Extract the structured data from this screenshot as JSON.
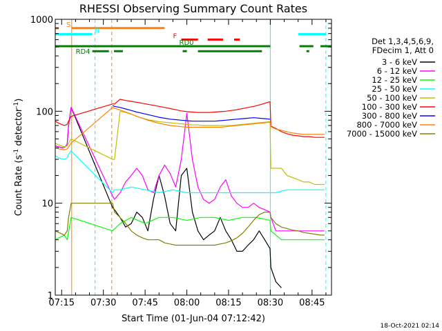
{
  "chart_data": {
    "type": "line",
    "title": "RHESSI Observing Summary Count Rates",
    "xlabel": "Start Time (01-Jun-04 07:12:42)",
    "ylabel_main": "Count Rate (s",
    "ylabel_sup1": "-1",
    "ylabel_mid": " detector",
    "ylabel_sup2": "-1",
    "ylabel_end": ")",
    "yscale": "log",
    "ylim": [
      1,
      1000
    ],
    "xlim_minutes": [
      432.7,
      532.0
    ],
    "x_ticks": [
      {
        "label": "07:15",
        "minute": 435
      },
      {
        "label": "07:30",
        "minute": 450
      },
      {
        "label": "07:45",
        "minute": 465
      },
      {
        "label": "08:00",
        "minute": 480
      },
      {
        "label": "08:15",
        "minute": 495
      },
      {
        "label": "08:30",
        "minute": 510
      },
      {
        "label": "08:45",
        "minute": 525
      }
    ],
    "y_ticks": [
      {
        "label": "1",
        "value": 1
      },
      {
        "label": "10",
        "value": 10
      },
      {
        "label": "100",
        "value": 100
      },
      {
        "label": "1000",
        "value": 1000
      }
    ],
    "legend_header": [
      "Det 1,3,4,5,6,9,",
      "FDecim 1, Att 0"
    ],
    "series": [
      {
        "name": "3 - 6 keV",
        "color": "#000000",
        "x": [
          432.7,
          434,
          435.3,
          436.3,
          437,
          437.5,
          438.4,
          453.3,
          454,
          456,
          458,
          460,
          462,
          464,
          466,
          468,
          470,
          472,
          474,
          476,
          478,
          480,
          482,
          484,
          486,
          488,
          490,
          492,
          494,
          496,
          498,
          500,
          502,
          504,
          506,
          508,
          509.9,
          510.2,
          512,
          514,
          516,
          518,
          520,
          522,
          524,
          526,
          528,
          529.5
        ],
        "y": [
          42,
          41,
          40,
          41,
          44,
          70,
          110,
          9,
          8.5,
          7,
          5.5,
          6,
          8,
          7,
          5,
          11,
          20,
          12,
          6,
          5,
          20,
          24,
          8,
          5,
          4,
          4.5,
          5,
          7,
          5,
          4,
          3,
          3,
          3.5,
          4,
          5,
          4,
          3.2,
          2,
          1.4,
          1.2,
          null,
          null,
          null,
          null,
          null,
          null,
          null,
          null
        ]
      },
      {
        "name": "6 - 12 keV",
        "color": "#ff00ff",
        "x": [
          432.7,
          434,
          435.3,
          436.3,
          437,
          437.5,
          438.4,
          453.3,
          454,
          456,
          458,
          460,
          462,
          464,
          466,
          468,
          470,
          472,
          474,
          476,
          478,
          480,
          482,
          484,
          486,
          488,
          490,
          492,
          494,
          496,
          498,
          500,
          502,
          504,
          506,
          508,
          509.9,
          510.2,
          512,
          514,
          516,
          518,
          520,
          522,
          524,
          526,
          528,
          529.5
        ],
        "y": [
          42,
          41,
          40,
          41,
          44,
          70,
          110,
          12,
          11,
          13,
          17,
          20,
          24,
          20,
          14,
          13,
          20,
          26,
          21,
          15,
          30,
          95,
          30,
          15,
          11,
          10,
          11,
          15,
          18,
          12,
          10,
          9,
          9,
          10,
          9,
          8.5,
          8,
          7,
          5,
          5,
          5,
          5,
          5,
          5,
          5,
          5,
          5,
          5
        ]
      },
      {
        "name": "12 - 25 keV",
        "color": "#00ff00",
        "x": [
          432.7,
          434,
          436,
          437,
          438.4,
          453.3,
          456,
          460,
          465,
          470,
          475,
          480,
          485,
          490,
          495,
          500,
          505,
          509.9,
          510.2,
          514,
          518,
          522,
          526,
          529.5
        ],
        "y": [
          4,
          4.2,
          4.5,
          4,
          7,
          5,
          6,
          7,
          6,
          7,
          7,
          6.5,
          7,
          7,
          6.5,
          7,
          7,
          6.5,
          5,
          4,
          4,
          4,
          4,
          4
        ]
      },
      {
        "name": "25 - 50 keV",
        "color": "#00ffff",
        "x": [
          432.7,
          434,
          436,
          437,
          437.5,
          438.4,
          453.3,
          454,
          456,
          460,
          465,
          470,
          475,
          480,
          485,
          490,
          495,
          500,
          505,
          509.9,
          510.2,
          512,
          516,
          520,
          524,
          528,
          529.5
        ],
        "y": [
          33,
          31,
          30,
          31,
          34,
          37,
          13,
          14,
          14,
          15,
          14,
          13,
          14,
          13,
          13,
          13,
          13,
          13,
          13,
          13,
          13,
          13,
          14,
          14,
          14,
          14,
          14
        ]
      },
      {
        "name": "50 - 100 keV",
        "color": "#c0c000",
        "x": [
          432.7,
          434,
          436,
          437,
          437.5,
          438.4,
          453.3,
          454,
          456,
          458,
          460,
          462,
          464,
          466,
          468,
          470,
          472,
          474,
          476,
          478,
          480,
          482,
          484,
          486,
          488,
          490,
          492,
          494,
          496,
          498,
          500,
          502,
          504,
          506,
          508,
          509.9,
          510.2,
          512,
          514,
          516,
          518,
          520,
          522,
          524,
          526,
          528,
          529.5
        ],
        "y": [
          45,
          43,
          41,
          42,
          45,
          50,
          30,
          30,
          100,
          97,
          93,
          88,
          84,
          81,
          79,
          77,
          76,
          75,
          74,
          73,
          72,
          71,
          71,
          70,
          70,
          70,
          70,
          70,
          70,
          71,
          72,
          73,
          74,
          75,
          76,
          77,
          24,
          24,
          24,
          20,
          19,
          18,
          17,
          17,
          16,
          16,
          16
        ]
      },
      {
        "name": "100 - 300 keV",
        "color": "#ff0000",
        "x": [
          432.7,
          434,
          436,
          437,
          437.5,
          438.4,
          453.3,
          454,
          456,
          458,
          460,
          462,
          464,
          466,
          468,
          470,
          472,
          474,
          476,
          478,
          480,
          482,
          484,
          486,
          488,
          490,
          492,
          494,
          496,
          498,
          500,
          502,
          504,
          506,
          508,
          509.9,
          510.2,
          512,
          514,
          516,
          518,
          520,
          522,
          524,
          526,
          528,
          529.5
        ],
        "y": [
          78,
          74,
          70,
          72,
          78,
          88,
          120,
          120,
          135,
          131,
          128,
          125,
          122,
          119,
          116,
          113,
          110,
          107,
          104,
          101,
          99,
          98,
          97,
          97,
          97,
          98,
          99,
          100,
          102,
          104,
          107,
          110,
          113,
          117,
          122,
          127,
          69,
          65,
          60,
          57,
          55,
          54,
          53,
          53,
          52,
          52,
          52
        ]
      },
      {
        "name": "300 - 800 keV",
        "color": "#0000ff",
        "x": [
          453.3,
          454,
          456,
          458,
          460,
          462,
          464,
          466,
          468,
          470,
          472,
          474,
          476,
          478,
          480,
          482,
          484,
          486,
          488,
          490,
          492,
          494,
          496,
          498,
          500,
          502,
          504,
          506,
          508,
          509.9
        ],
        "y": [
          115,
          113,
          110,
          106,
          102,
          98,
          95,
          92,
          89,
          86,
          84,
          82,
          81,
          80,
          79,
          78,
          78,
          78,
          78,
          78,
          79,
          80,
          81,
          82,
          83,
          84,
          85,
          84,
          83,
          82
        ]
      },
      {
        "name": "800 - 7000 keV",
        "color": "#ff8000",
        "x": [
          432.7,
          434,
          436,
          437,
          437.5,
          438.4,
          453.3,
          454,
          456,
          458,
          460,
          462,
          464,
          466,
          468,
          470,
          472,
          474,
          476,
          478,
          480,
          482,
          484,
          486,
          488,
          490,
          492,
          494,
          496,
          498,
          500,
          502,
          504,
          506,
          508,
          509.9,
          510.2,
          512,
          514,
          516,
          518,
          520,
          522,
          524,
          526,
          528,
          529.5
        ],
        "y": [
          40,
          39,
          38,
          39,
          41,
          45,
          110,
          108,
          103,
          98,
          93,
          88,
          84,
          80,
          77,
          74,
          72,
          70,
          69,
          68,
          67,
          67,
          67,
          67,
          67,
          67,
          67,
          68,
          69,
          70,
          71,
          72,
          73,
          74,
          75,
          76,
          68,
          64,
          62,
          60,
          58,
          57,
          56,
          56,
          56,
          56,
          56
        ]
      },
      {
        "name": "7000 - 15000 keV",
        "color": "#808000",
        "x": [
          432.7,
          434,
          436,
          437,
          437.5,
          438.4,
          453.3,
          454,
          456,
          458,
          460,
          462,
          464,
          466,
          468,
          470,
          472,
          474,
          476,
          478,
          480,
          482,
          484,
          486,
          488,
          490,
          492,
          494,
          496,
          498,
          500,
          502,
          504,
          506,
          508,
          509.9,
          510.2,
          512,
          514,
          516,
          518,
          520,
          522,
          524,
          526,
          528,
          529.5
        ],
        "y": [
          5,
          4.8,
          4.5,
          5,
          7,
          10,
          10,
          8,
          7,
          6,
          5,
          4.5,
          4.2,
          4,
          4,
          4,
          3.7,
          3.6,
          3.5,
          3.5,
          3.5,
          3.5,
          3.5,
          3.5,
          3.5,
          3.5,
          3.6,
          3.7,
          3.9,
          4.2,
          4.7,
          5.5,
          6.5,
          7.5,
          8,
          8,
          7,
          6,
          5.5,
          5.3,
          5.1,
          5,
          4.8,
          4.7,
          4.6,
          4.5,
          4.5
        ]
      }
    ],
    "vertical_lines": [
      {
        "name": "saa-start",
        "minute": 438.6,
        "color": "#ff8000",
        "style": "solid"
      },
      {
        "name": "night-end-1",
        "minute": 447.0,
        "color": "#00ffff",
        "style": "dashed"
      },
      {
        "name": "saa-end",
        "minute": 453.0,
        "color": "#ff8000",
        "style": "dashed"
      },
      {
        "name": "night-start-2",
        "minute": 510.0,
        "color": "#00ffff",
        "style": "solid"
      },
      {
        "name": "night-end-2",
        "minute": 530.0,
        "color": "#00ffff",
        "style": "dashed"
      }
    ],
    "flags": [
      {
        "label": "S",
        "color": "#ff8000",
        "segments": [
          [
            432.7,
            434.0
          ],
          [
            438.6,
            472.0
          ]
        ],
        "level": 802
      },
      {
        "label": "N",
        "color": "#00ffff",
        "segments": [
          [
            432.7,
            446.0
          ],
          [
            520.0,
            530.0
          ]
        ],
        "level": 690
      },
      {
        "label": "F",
        "color": "#ff0000",
        "segments": [
          [
            478.0,
            484.0
          ],
          [
            487.5,
            493.0
          ],
          [
            497.0,
            499.0
          ]
        ],
        "level": 602
      },
      {
        "label": "RD0",
        "color": "#008000",
        "segments": [
          [
            432.7,
            510.0
          ],
          [
            520.5,
            525.5
          ],
          [
            528.0,
            532.0
          ]
        ],
        "level": 510
      },
      {
        "label": "RD4",
        "color": "#008000",
        "segments": [
          [
            446.0,
            452.0
          ],
          [
            453.8,
            457.0
          ],
          [
            478.5,
            480.0
          ],
          [
            484.0,
            507.0
          ],
          [
            523.0,
            524.0
          ]
        ],
        "level": 450
      }
    ]
  },
  "footer_date": "18-Oct-2021 02:14"
}
